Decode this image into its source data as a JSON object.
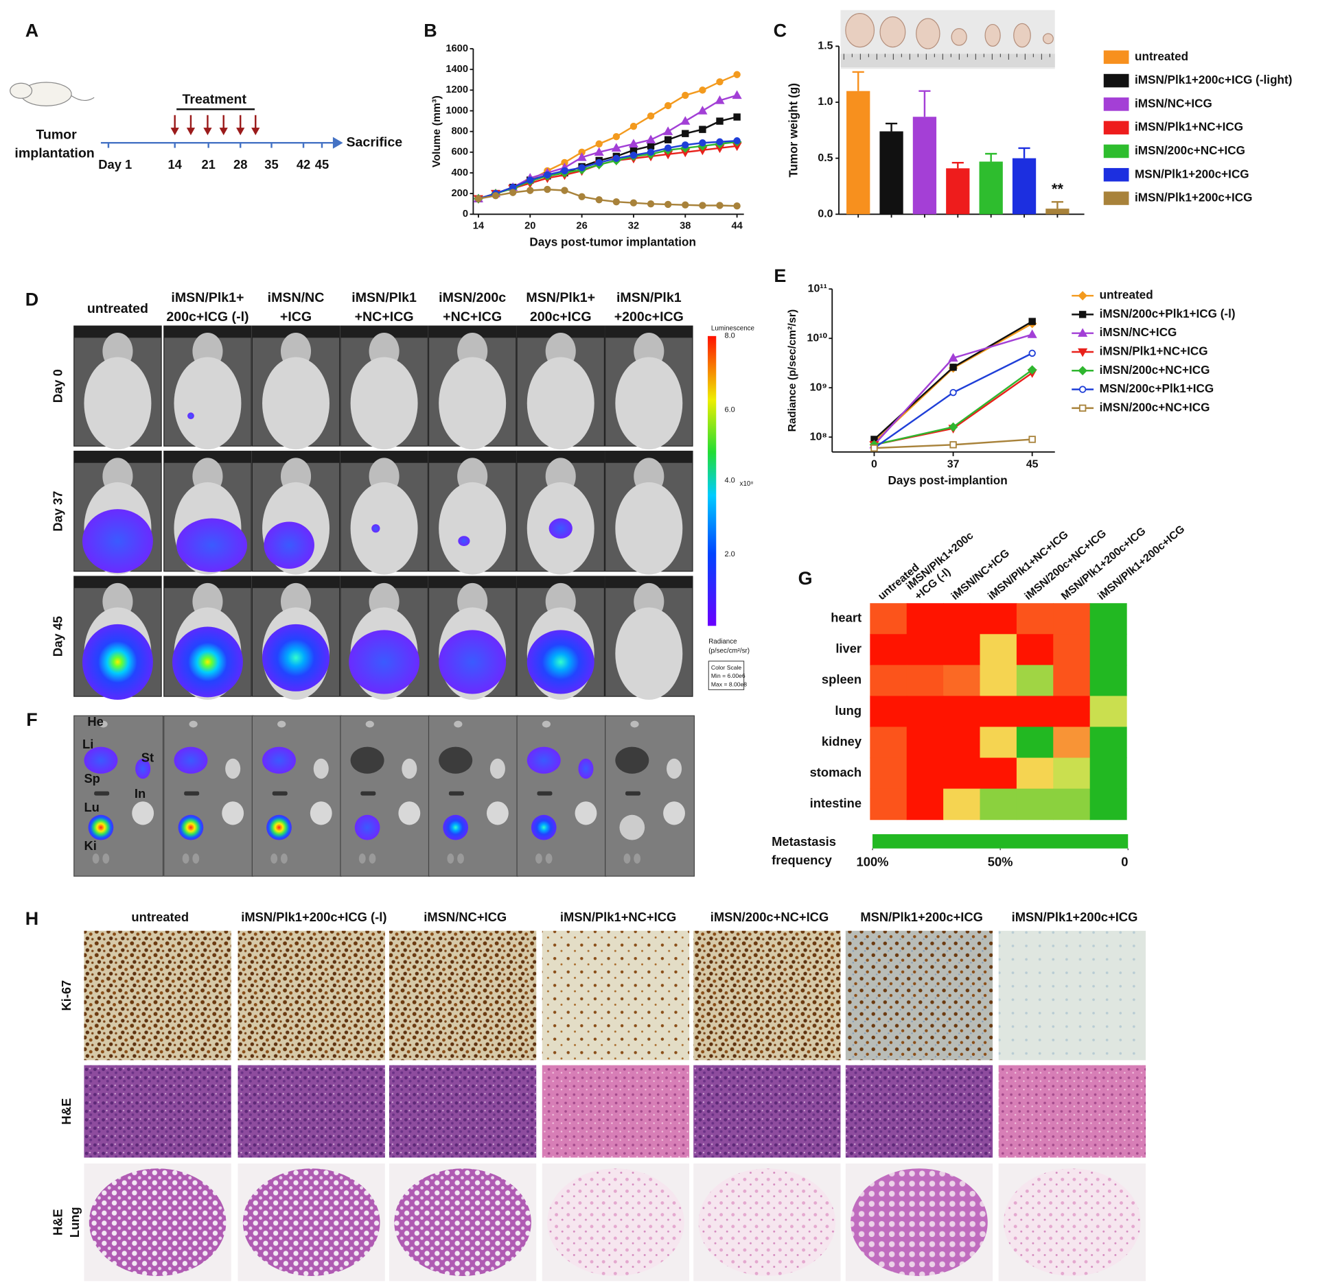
{
  "panel_labels": [
    "A",
    "B",
    "C",
    "D",
    "E",
    "F",
    "G",
    "H"
  ],
  "timeline": {
    "treatment": "Treatment",
    "subject": [
      "Tumor",
      "implantation"
    ],
    "days": [
      "Day 1",
      "14",
      "21",
      "28",
      "35",
      "42",
      "45"
    ],
    "end": "Sacrifice"
  },
  "imaging": {
    "columns": [
      [
        "untreated"
      ],
      [
        "iMSN/Plk1+",
        "200c+ICG (-l)"
      ],
      [
        "iMSN/NC",
        "+ICG"
      ],
      [
        "iMSN/Plk1",
        "+NC+ICG"
      ],
      [
        "iMSN/200c",
        "+NC+ICG"
      ],
      [
        "MSN/Plk1+",
        "200c+ICG"
      ],
      [
        "iMSN/Plk1",
        "+200c+ICG"
      ]
    ],
    "rows": [
      "Day 0",
      "Day 37",
      "Day 45"
    ],
    "colorbar": {
      "title": "Luminescence",
      "ticks": [
        "8.0",
        "6.0",
        "4.0",
        "2.0"
      ],
      "multiplier": "x10⁸",
      "unit": [
        "Radiance",
        "(p/sec/cm²/sr)"
      ],
      "scale": [
        "Color Scale",
        "Min = 6.00e6",
        "Max = 8.00e8"
      ]
    }
  },
  "organs": {
    "labels": [
      "He",
      "Li",
      "St",
      "Sp",
      "In",
      "Lu",
      "Ki"
    ]
  },
  "histology": {
    "columns": [
      "untreated",
      "iMSN/Plk1+200c+ICG (-l)",
      "iMSN/NC+ICG",
      "iMSN/Plk1+NC+ICG",
      "iMSN/200c+NC+ICG",
      "MSN/Plk1+200c+ICG",
      "iMSN/Plk1+200c+ICG"
    ],
    "rows": [
      [
        "Ki-67"
      ],
      [
        "H&E"
      ],
      [
        "H&E",
        "Lung"
      ]
    ]
  },
  "chart_data": [
    {
      "type": "line",
      "xlabel": "Days post-tumor implantation",
      "ylabel": "Volume (mm³)",
      "x": [
        14,
        16,
        18,
        20,
        22,
        24,
        26,
        28,
        30,
        32,
        34,
        36,
        38,
        40,
        42,
        44
      ],
      "xlim": [
        13.4,
        44.8
      ],
      "xticks": [
        14,
        20,
        26,
        32,
        38,
        44
      ],
      "ylim": [
        0,
        1600
      ],
      "yticks": [
        0,
        200,
        400,
        600,
        800,
        1000,
        1200,
        1400,
        1600
      ],
      "series": [
        {
          "color": "#f39a1e",
          "marker": "circle",
          "values": [
            150,
            200,
            260,
            330,
            420,
            500,
            600,
            680,
            750,
            850,
            950,
            1050,
            1150,
            1200,
            1280,
            1350
          ]
        },
        {
          "color": "#111111",
          "marker": "square",
          "values": [
            150,
            200,
            260,
            330,
            370,
            400,
            460,
            520,
            560,
            620,
            660,
            720,
            780,
            820,
            900,
            940
          ]
        },
        {
          "color": "#a23fd6",
          "marker": "triangle",
          "values": [
            150,
            200,
            260,
            350,
            400,
            450,
            550,
            600,
            640,
            680,
            720,
            800,
            900,
            1000,
            1100,
            1150
          ]
        },
        {
          "color": "#e8211b",
          "marker": "triangle-down",
          "values": [
            150,
            200,
            250,
            300,
            350,
            380,
            420,
            480,
            520,
            540,
            560,
            580,
            600,
            620,
            640,
            660
          ]
        },
        {
          "color": "#2fb62f",
          "marker": "diamond",
          "values": [
            150,
            200,
            250,
            320,
            370,
            400,
            430,
            480,
            520,
            560,
            580,
            620,
            640,
            660,
            680,
            700
          ]
        },
        {
          "color": "#1f3fd8",
          "marker": "circle",
          "values": [
            150,
            200,
            260,
            330,
            380,
            420,
            450,
            500,
            540,
            570,
            600,
            640,
            670,
            690,
            700,
            710
          ]
        },
        {
          "color": "#a8823a",
          "marker": "circle",
          "values": [
            150,
            180,
            210,
            230,
            240,
            230,
            170,
            140,
            120,
            110,
            100,
            95,
            90,
            85,
            85,
            80
          ]
        }
      ]
    },
    {
      "type": "bar",
      "ylabel": "Tumor weight (g)",
      "categories": [
        "untreated",
        "iMSN/Plk1+200c+ICG (-light)",
        "iMSN/NC+ICG",
        "iMSN/Plk1+NC+ICG",
        "iMSN/200c+NC+ICG",
        "MSN/Plk1+200c+ICG",
        "iMSN/Plk1+200c+ICG"
      ],
      "values": [
        1.1,
        0.74,
        0.87,
        0.41,
        0.47,
        0.5,
        0.05
      ],
      "errors": [
        0.17,
        0.07,
        0.23,
        0.05,
        0.07,
        0.09,
        0.06
      ],
      "colors": [
        "#f7901e",
        "#111111",
        "#a43fd6",
        "#ee1c1c",
        "#2ebd2e",
        "#1c2fe0",
        "#a8823a"
      ],
      "ylim": [
        0,
        1.5
      ],
      "yticks": [
        {
          "value": 0,
          "label": "0.0"
        },
        0.5,
        {
          "value": 1,
          "label": "1.0"
        },
        1.5
      ],
      "annotation": "**"
    },
    {
      "type": "line",
      "scale": "log",
      "xlabel": "Days post-implantion",
      "ylabel": "Radiance (p/sec/cm²/sr)",
      "categories": [
        "0",
        "37",
        "45"
      ],
      "ylim": [
        50000000,
        100000000000
      ],
      "yticks": [
        {
          "value": 100000000,
          "label": "10⁸"
        },
        {
          "value": 1000000000,
          "label": "10⁹"
        },
        {
          "value": 10000000000,
          "label": "10¹⁰"
        },
        {
          "value": 100000000000,
          "label": "10¹¹"
        }
      ],
      "series": [
        {
          "name": "untreated",
          "color": "#f39a1e",
          "marker": "diamond",
          "values": [
            80000000,
            2500000000,
            20000000000
          ]
        },
        {
          "name": "iMSN/200c+Plk1+ICG (-l)",
          "color": "#111111",
          "marker": "square",
          "values": [
            90000000,
            2600000000,
            22000000000
          ]
        },
        {
          "name": "iMSN/NC+ICG",
          "color": "#a23fd6",
          "marker": "triangle",
          "values": [
            70000000,
            4000000000,
            12000000000
          ]
        },
        {
          "name": "iMSN/Plk1+NC+ICG",
          "color": "#e8211b",
          "marker": "triangle-down",
          "values": [
            70000000,
            150000000,
            2000000000
          ]
        },
        {
          "name": "iMSN/200c+NC+ICG",
          "color": "#2fb62f",
          "marker": "diamond",
          "values": [
            70000000,
            160000000,
            2300000000
          ]
        },
        {
          "name": "MSN/200c+Plk1+ICG",
          "color": "#1f3fd8",
          "marker": "circle-open",
          "values": [
            60000000,
            800000000,
            5000000000
          ]
        },
        {
          "name": "iMSN/200c+NC+ICG",
          "color": "#a8823a",
          "marker": "square-open",
          "values": [
            60000000,
            70000000,
            90000000
          ]
        }
      ]
    },
    {
      "type": "heatmap",
      "columns": [
        [
          "untreated"
        ],
        [
          "iMSN/Plk1+200c",
          "+ICG (-l)"
        ],
        [
          "iMSN/NC+ICG"
        ],
        [
          "iMSN/Plk1+NC+ICG"
        ],
        [
          "iMSN/200c+NC+ICG"
        ],
        [
          "MSN/Plk1+200c+ICG"
        ],
        [
          "iMSN/Plk1+200c+ICG"
        ]
      ],
      "rows": [
        "heart",
        "liver",
        "spleen",
        "lung",
        "kidney",
        "stomach",
        "intestine"
      ],
      "values": [
        [
          85,
          100,
          100,
          100,
          85,
          85,
          0
        ],
        [
          100,
          100,
          100,
          55,
          100,
          85,
          0
        ],
        [
          85,
          85,
          80,
          55,
          30,
          85,
          0
        ],
        [
          100,
          100,
          100,
          100,
          100,
          100,
          40
        ],
        [
          85,
          100,
          100,
          55,
          0,
          70,
          0
        ],
        [
          85,
          100,
          100,
          100,
          55,
          40,
          0
        ],
        [
          85,
          100,
          55,
          25,
          25,
          25,
          0
        ]
      ],
      "colors": [
        "#22b822",
        "#f4e95a",
        "#ff1400"
      ],
      "clim": [
        0,
        100
      ],
      "colorbar": {
        "title": [
          "Metastasis",
          "frequency"
        ],
        "ticks": [
          {
            "value": 100,
            "label": "100%"
          },
          {
            "value": 50,
            "label": "50%"
          },
          0
        ]
      }
    }
  ]
}
